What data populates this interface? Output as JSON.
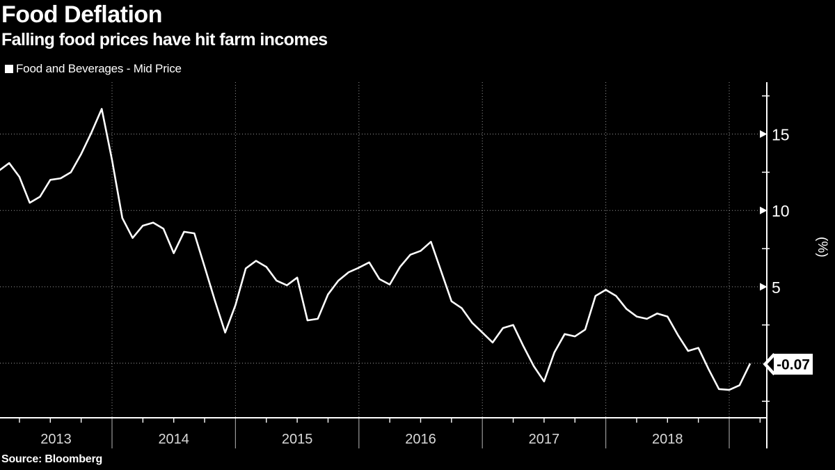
{
  "header": {
    "title": "Food Deflation",
    "subtitle": "Falling food prices have hit farm incomes"
  },
  "legend": {
    "label": "Food and Beverages - Mid Price",
    "marker_color": "#ffffff"
  },
  "footer": {
    "source": "Source: Bloomberg"
  },
  "axis": {
    "y_unit_label": "(%)",
    "y_major_ticks": [
      5,
      10,
      15
    ],
    "y_minor_ticks": [
      -2.5,
      2.5,
      7.5,
      12.5,
      17.5
    ],
    "x_year_labels": [
      "2013",
      "2014",
      "2015",
      "2016",
      "2017",
      "2018"
    ],
    "last_price_label": "-0.07"
  },
  "colors": {
    "background": "#000000",
    "line": "#ffffff",
    "axis": "#ffffff",
    "grid_dotted": "#999999",
    "year_separator": "#9a9a9a",
    "year_label": "#d9d9d9",
    "badge_bg": "#ffffff",
    "badge_text": "#000000"
  },
  "chart_data": {
    "type": "line",
    "title": "Food Deflation",
    "subtitle": "Falling food prices have hit farm incomes",
    "ylabel": "(%)",
    "ylim": [
      -3.6,
      18.3
    ],
    "grid": "dotted",
    "legend_position": "top-left",
    "x_axis": "monthly, Feb 2013 - Mar 2019, year labels 2013-2018",
    "last_value_label": "-0.07",
    "series": [
      {
        "name": "Food and Beverages - Mid Price",
        "color": "#ffffff",
        "points": [
          [
            "2013-02",
            12.6
          ],
          [
            "2013-03",
            13.1
          ],
          [
            "2013-04",
            12.2
          ],
          [
            "2013-05",
            10.5
          ],
          [
            "2013-06",
            10.9
          ],
          [
            "2013-07",
            12.0
          ],
          [
            "2013-08",
            12.1
          ],
          [
            "2013-09",
            12.5
          ],
          [
            "2013-10",
            13.7
          ],
          [
            "2013-11",
            15.1
          ],
          [
            "2013-12",
            16.65
          ],
          [
            "2014-01",
            13.3
          ],
          [
            "2014-02",
            9.5
          ],
          [
            "2014-03",
            8.2
          ],
          [
            "2014-04",
            9.0
          ],
          [
            "2014-05",
            9.2
          ],
          [
            "2014-06",
            8.8
          ],
          [
            "2014-07",
            7.2
          ],
          [
            "2014-08",
            8.6
          ],
          [
            "2014-09",
            8.5
          ],
          [
            "2014-10",
            6.3
          ],
          [
            "2014-11",
            4.1
          ],
          [
            "2014-12",
            2.0
          ],
          [
            "2015-01",
            3.8
          ],
          [
            "2015-02",
            6.2
          ],
          [
            "2015-03",
            6.7
          ],
          [
            "2015-04",
            6.3
          ],
          [
            "2015-05",
            5.4
          ],
          [
            "2015-06",
            5.1
          ],
          [
            "2015-07",
            5.6
          ],
          [
            "2015-08",
            2.8
          ],
          [
            "2015-09",
            2.9
          ],
          [
            "2015-10",
            4.5
          ],
          [
            "2015-11",
            5.4
          ],
          [
            "2015-12",
            5.95
          ],
          [
            "2016-01",
            6.25
          ],
          [
            "2016-02",
            6.6
          ],
          [
            "2016-03",
            5.5
          ],
          [
            "2016-04",
            5.15
          ],
          [
            "2016-05",
            6.3
          ],
          [
            "2016-06",
            7.1
          ],
          [
            "2016-07",
            7.35
          ],
          [
            "2016-08",
            7.95
          ],
          [
            "2016-09",
            6.0
          ],
          [
            "2016-10",
            4.05
          ],
          [
            "2016-11",
            3.6
          ],
          [
            "2016-12",
            2.65
          ],
          [
            "2017-01",
            2.0
          ],
          [
            "2017-02",
            1.35
          ],
          [
            "2017-03",
            2.3
          ],
          [
            "2017-04",
            2.5
          ],
          [
            "2017-05",
            1.1
          ],
          [
            "2017-06",
            -0.2
          ],
          [
            "2017-07",
            -1.2
          ],
          [
            "2017-08",
            0.7
          ],
          [
            "2017-09",
            1.9
          ],
          [
            "2017-10",
            1.75
          ],
          [
            "2017-11",
            2.2
          ],
          [
            "2017-12",
            4.4
          ],
          [
            "2018-01",
            4.8
          ],
          [
            "2018-02",
            4.4
          ],
          [
            "2018-03",
            3.55
          ],
          [
            "2018-04",
            3.05
          ],
          [
            "2018-05",
            2.9
          ],
          [
            "2018-06",
            3.25
          ],
          [
            "2018-07",
            3.05
          ],
          [
            "2018-08",
            1.85
          ],
          [
            "2018-09",
            0.8
          ],
          [
            "2018-10",
            1.0
          ],
          [
            "2018-11",
            -0.4
          ],
          [
            "2018-12",
            -1.7
          ],
          [
            "2019-01",
            -1.75
          ],
          [
            "2019-02",
            -1.45
          ],
          [
            "2019-03",
            -0.07
          ]
        ]
      }
    ]
  }
}
